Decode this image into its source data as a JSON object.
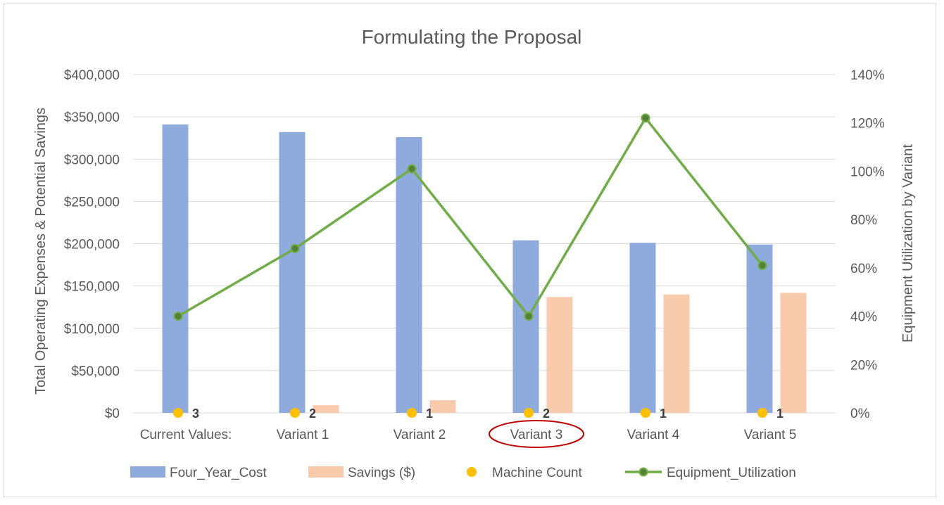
{
  "chart_data": {
    "type": "bar",
    "title": "Formulating the Proposal",
    "categories": [
      "Current Values:",
      "Variant 1",
      "Variant 2",
      "Variant 3",
      "Variant 4",
      "Variant 5"
    ],
    "highlighted_category": "Variant 3",
    "ylabel": "Total Operating Expenses & Potential Savings",
    "y2label": "Equipment Utilization by Variant",
    "ylim": [
      0,
      400000
    ],
    "y2lim": [
      0,
      1.4
    ],
    "yticks": [
      "$0",
      "$50,000",
      "$100,000",
      "$150,000",
      "$200,000",
      "$250,000",
      "$300,000",
      "$350,000",
      "$400,000"
    ],
    "y2ticks": [
      "0%",
      "20%",
      "40%",
      "60%",
      "80%",
      "100%",
      "120%",
      "140%"
    ],
    "grid": true,
    "legend_position": "bottom",
    "series": [
      {
        "name": "Four_Year_Cost",
        "type": "bar",
        "axis": "left",
        "color": "#8faadc",
        "values": [
          341000,
          332000,
          326000,
          204000,
          201000,
          199000
        ]
      },
      {
        "name": "Savings ($)",
        "type": "bar",
        "axis": "left",
        "color": "#f8cbad",
        "values": [
          0,
          9000,
          15000,
          137000,
          140000,
          142000
        ]
      },
      {
        "name": "Machine Count",
        "type": "scatter",
        "axis": "left",
        "color": "#ffc000",
        "values": [
          3,
          2,
          1,
          2,
          1,
          1
        ],
        "labels": [
          "3",
          "2",
          "1",
          "2",
          "1",
          "1"
        ]
      },
      {
        "name": "Equipment_Utilization",
        "type": "line",
        "axis": "right",
        "color": "#70ad47",
        "marker_color": "#548235",
        "values": [
          0.4,
          0.68,
          1.01,
          0.4,
          1.22,
          0.61
        ]
      }
    ]
  }
}
